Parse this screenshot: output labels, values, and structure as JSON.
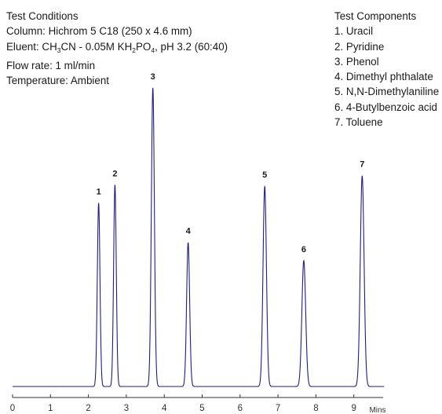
{
  "conditions": {
    "title": "Test Conditions",
    "column": "Column: Hichrom 5 C18 (250 x 4.6 mm)",
    "eluent": {
      "prefix": "Eluent: CH",
      "sub1": "3",
      "part2": "CN - 0.05M KH",
      "sub2": "2",
      "part3": "PO",
      "sub3": "4",
      "suffix": ", pH 3.2 (60:40)"
    },
    "flow_rate": "Flow rate: 1 ml/min",
    "temperature": "Temperature: Ambient"
  },
  "components": {
    "title": "Test Components",
    "items": [
      "1. Uracil",
      "2. Pyridine",
      "3. Phenol",
      "4. Dimethyl phthalate",
      "5. N,N-Dimethylaniline",
      "6. 4-Butylbenzoic acid",
      "7. Toluene"
    ]
  },
  "chart_data": {
    "type": "line",
    "title": "",
    "xlabel": "Mins",
    "ylabel": "",
    "xlim": [
      0,
      9.8
    ],
    "ylim": [
      0,
      100
    ],
    "x_ticks": [
      "0",
      "1",
      "2",
      "3",
      "4",
      "5",
      "6",
      "7",
      "8",
      "9"
    ],
    "line_color": "#1f1f7a",
    "peaks": [
      {
        "label": "1",
        "time": 2.27,
        "height": 60.5,
        "width": 0.035
      },
      {
        "label": "2",
        "time": 2.7,
        "height": 66.5,
        "width": 0.035
      },
      {
        "label": "3",
        "time": 3.7,
        "height": 98.5,
        "width": 0.04
      },
      {
        "label": "4",
        "time": 4.63,
        "height": 47.5,
        "width": 0.04
      },
      {
        "label": "5",
        "time": 6.65,
        "height": 66.0,
        "width": 0.045
      },
      {
        "label": "6",
        "time": 7.68,
        "height": 41.5,
        "width": 0.05
      },
      {
        "label": "7",
        "time": 9.22,
        "height": 69.5,
        "width": 0.05
      }
    ],
    "grid": false,
    "legend": "none"
  }
}
